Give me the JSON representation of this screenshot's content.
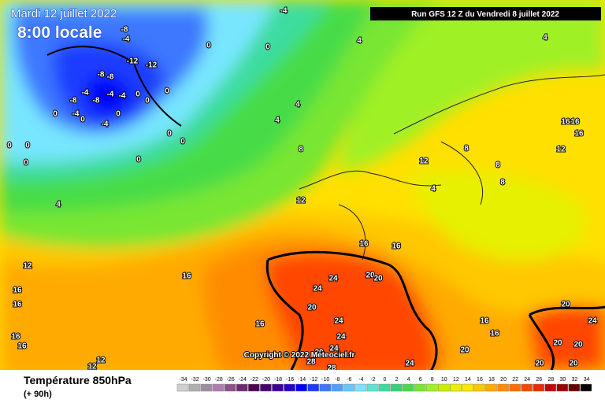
{
  "header": {
    "date": "Mardi 12 juillet 2022",
    "time": "8:00 locale",
    "run": "Run GFS 12 Z du Vendredi 8 juillet 2022",
    "copyright": "Copyright © 2022 Meteociel.fr"
  },
  "footer": {
    "title": "Température 850hPa",
    "lead": "(+ 90h)"
  },
  "scale": {
    "values": [
      -34,
      -32,
      -30,
      -28,
      -26,
      -24,
      -22,
      -20,
      -18,
      -16,
      -14,
      -12,
      -10,
      -8,
      -6,
      -4,
      -2,
      0,
      2,
      4,
      6,
      8,
      10,
      12,
      14,
      16,
      18,
      20,
      22,
      24,
      26,
      28,
      30,
      32,
      34
    ],
    "colors": [
      "#d0d0d0",
      "#b0b0b0",
      "#a08ca0",
      "#b07cb0",
      "#8c508c",
      "#6e2a6e",
      "#500050",
      "#46006e",
      "#3c0096",
      "#2800c8",
      "#0000ff",
      "#1e3cff",
      "#3c78ff",
      "#50a0ff",
      "#64c8ff",
      "#78e6ff",
      "#5ae6d2",
      "#3cdca0",
      "#32d278",
      "#46dc46",
      "#78e632",
      "#a0f028",
      "#c8f000",
      "#e6f000",
      "#ffe600",
      "#ffc800",
      "#ffaa00",
      "#ff8c00",
      "#ff6e00",
      "#ff4600",
      "#f02800",
      "#c80000",
      "#a00000",
      "#640000",
      "#000000"
    ]
  },
  "contour_labels": [
    -4,
    -8,
    -4,
    0,
    0,
    -12,
    -12,
    -8,
    -8,
    -4,
    -4,
    -4,
    0,
    0,
    0,
    -8,
    -8,
    -4,
    -4,
    0,
    0,
    0,
    0,
    0,
    0,
    0,
    0,
    0,
    4,
    4,
    4,
    4,
    4,
    8,
    12,
    8,
    8,
    8,
    4,
    12,
    12,
    16,
    16,
    16,
    16,
    16,
    12,
    16,
    16,
    16,
    16,
    16,
    16,
    24,
    24,
    20,
    20,
    20,
    24,
    24,
    24,
    20,
    28,
    28,
    24,
    16,
    16,
    20,
    20,
    24,
    20,
    20,
    20,
    20,
    12,
    12
  ]
}
